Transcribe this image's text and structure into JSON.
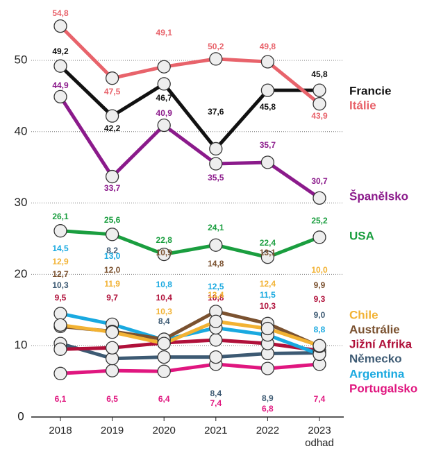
{
  "chart_data": {
    "type": "line",
    "categories": [
      "2018",
      "2019",
      "2020",
      "2021",
      "2022",
      "2023"
    ],
    "x_note": "odhad",
    "ylim": [
      0,
      57
    ],
    "yticks": [
      0,
      10,
      20,
      30,
      40,
      50
    ],
    "grid": true,
    "series": [
      {
        "name": "Francie",
        "color": "#111111",
        "values": [
          49.2,
          42.2,
          46.7,
          37.6,
          45.8,
          45.8
        ],
        "value_labels": [
          "49,2",
          "42,2",
          "46,7",
          "37,6",
          "45,8",
          "45,8"
        ]
      },
      {
        "name": "Itálie",
        "color": "#e8636b",
        "values": [
          54.8,
          47.5,
          49.1,
          50.2,
          49.8,
          43.9
        ],
        "value_labels": [
          "54,8",
          "47,5",
          "49,1",
          "50,2",
          "49,8",
          "43,9"
        ]
      },
      {
        "name": "Španělsko",
        "color": "#8b1a8b",
        "values": [
          44.9,
          33.7,
          40.9,
          35.5,
          35.7,
          30.7
        ],
        "value_labels": [
          "44,9",
          "33,7",
          "40,9",
          "35,5",
          "35,7",
          "30,7"
        ]
      },
      {
        "name": "USA",
        "color": "#1a9e3f",
        "values": [
          26.1,
          25.6,
          22.8,
          24.1,
          22.4,
          25.2
        ],
        "value_labels": [
          "26,1",
          "25,6",
          "22,8",
          "24,1",
          "22,4",
          "25,2"
        ]
      },
      {
        "name": "Chile",
        "color": "#f2b233",
        "values": [
          12.9,
          11.9,
          10.3,
          13.4,
          12.4,
          10.0
        ],
        "value_labels": [
          "12,9",
          "11,9",
          "10,3",
          "13,4",
          "12,4",
          "10,0"
        ]
      },
      {
        "name": "Austrálie",
        "color": "#7b5230",
        "values": [
          12.7,
          12.0,
          10.9,
          14.8,
          13.1,
          9.9
        ],
        "value_labels": [
          "12,7",
          "12,0",
          "10,9",
          "14,8",
          "13,1",
          "9,9"
        ]
      },
      {
        "name": "Jižní Afrika",
        "color": "#b0103a",
        "values": [
          9.5,
          9.7,
          10.4,
          10.8,
          10.3,
          9.3
        ],
        "value_labels": [
          "9,5",
          "9,7",
          "10,4",
          "10,8",
          "10,3",
          "9,3"
        ]
      },
      {
        "name": "Německo",
        "color": "#3d5a73",
        "values": [
          10.3,
          8.2,
          8.4,
          8.4,
          8.9,
          9.0
        ],
        "value_labels": [
          "10,3",
          "8,2",
          "8,4",
          "8,4",
          "8,9",
          "9,0"
        ]
      },
      {
        "name": "Argentina",
        "color": "#19a9e0",
        "values": [
          14.5,
          13.0,
          10.8,
          12.5,
          11.5,
          8.8
        ],
        "value_labels": [
          "14,5",
          "13,0",
          "10,8",
          "12,5",
          "11,5",
          "8,8"
        ]
      },
      {
        "name": "Portugalsko",
        "color": "#e0167f",
        "values": [
          6.1,
          6.5,
          6.4,
          7.4,
          6.8,
          7.4
        ],
        "value_labels": [
          "6,1",
          "6,5",
          "6,4",
          "7,4",
          "6,8",
          "7,4"
        ]
      }
    ]
  }
}
